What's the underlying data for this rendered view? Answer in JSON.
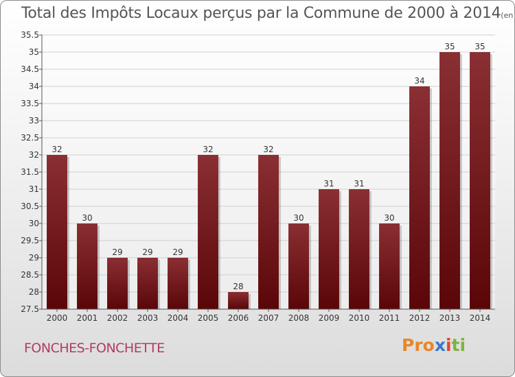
{
  "chart_data": {
    "type": "bar",
    "title": "Total des Impôts Locaux perçus par la Commune de 2000 à 2014",
    "unit": "(en milliers d'€)",
    "categories": [
      "2000",
      "2001",
      "2002",
      "2003",
      "2004",
      "2005",
      "2006",
      "2007",
      "2008",
      "2009",
      "2010",
      "2011",
      "2012",
      "2013",
      "2014"
    ],
    "values": [
      32,
      30,
      29,
      29,
      29,
      32,
      28,
      32,
      30,
      31,
      31,
      30,
      34,
      35,
      35
    ],
    "ylim": [
      27.5,
      35.5
    ],
    "yticks": [
      27.5,
      28,
      28.5,
      29,
      29.5,
      30,
      30.5,
      31,
      31.5,
      32,
      32.5,
      33,
      33.5,
      34,
      34.5,
      35,
      35.5
    ],
    "xlabel": "",
    "ylabel": "",
    "bar_color": "#7a1a1e",
    "grid": true
  },
  "commune": "FONCHES-FONCHETTE",
  "logo": {
    "part1": "Pro",
    "part2": "x",
    "part3": "i",
    "part4": "ti"
  }
}
